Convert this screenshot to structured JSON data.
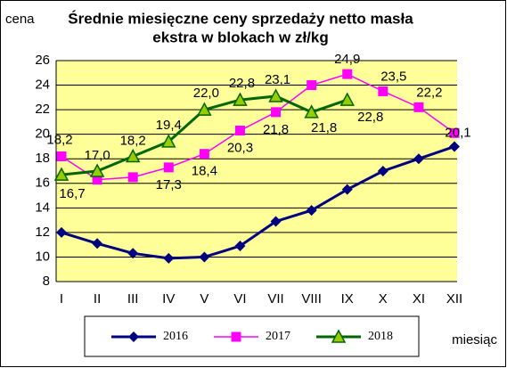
{
  "chart_data": {
    "type": "line",
    "title": [
      "Średnie miesięczne ceny sprzedaży netto masła",
      "ekstra w blokach w zł/kg"
    ],
    "y_label": "cena",
    "x_label": "miesiąc",
    "categories": [
      "I",
      "II",
      "III",
      "IV",
      "V",
      "VI",
      "VII",
      "VIII",
      "IX",
      "X",
      "XI",
      "XII"
    ],
    "ylim": [
      8,
      26
    ],
    "yticks": [
      8,
      10,
      12,
      14,
      16,
      18,
      20,
      22,
      24,
      26
    ],
    "grid": true,
    "legend": "bottom",
    "series": [
      {
        "name": "2016",
        "color": "#000080",
        "marker": "diamond",
        "values": [
          12.0,
          11.1,
          10.3,
          9.9,
          10.0,
          10.9,
          12.9,
          13.8,
          15.5,
          17.0,
          18.0,
          19.0
        ]
      },
      {
        "name": "2017",
        "color": "#ff00ff",
        "marker": "square",
        "values": [
          18.2,
          16.3,
          16.5,
          17.3,
          18.4,
          20.3,
          21.8,
          24.0,
          24.9,
          23.5,
          22.2,
          20.1
        ],
        "value_labels": [
          "18,2",
          null,
          null,
          "17,3",
          "18,4",
          "20,3",
          "21,8",
          null,
          "24,9",
          "23,5",
          "22,2",
          "20,1"
        ]
      },
      {
        "name": "2018",
        "color": "#006600",
        "marker": "triangle",
        "values": [
          16.7,
          17.0,
          18.2,
          19.4,
          22.0,
          22.8,
          23.1,
          21.8,
          22.8,
          null,
          null,
          null
        ],
        "value_labels": [
          "16,7",
          "17,0",
          "18,2",
          "19,4",
          "22,0",
          "22,8",
          "23,1",
          "21,8",
          "22,8",
          null,
          null,
          null
        ]
      }
    ]
  }
}
